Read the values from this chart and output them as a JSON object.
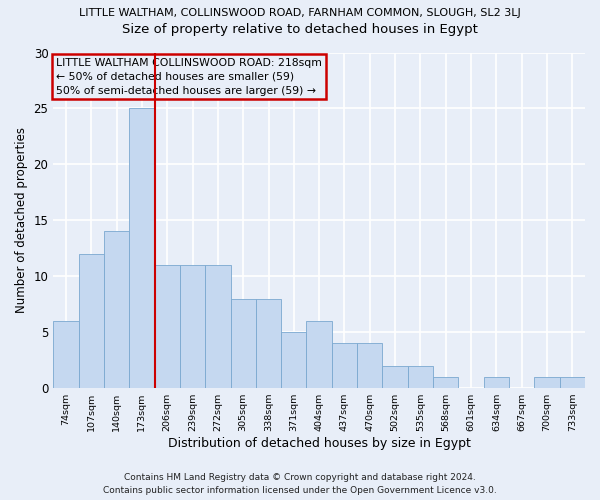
{
  "title1": "LITTLE WALTHAM, COLLINSWOOD ROAD, FARNHAM COMMON, SLOUGH, SL2 3LJ",
  "title2": "Size of property relative to detached houses in Egypt",
  "xlabel": "Distribution of detached houses by size in Egypt",
  "ylabel": "Number of detached properties",
  "bar_values": [
    6,
    12,
    14,
    25,
    11,
    11,
    11,
    8,
    8,
    5,
    6,
    4,
    4,
    2,
    2,
    1,
    0,
    1,
    0,
    1,
    1
  ],
  "bar_labels": [
    "74sqm",
    "107sqm",
    "140sqm",
    "173sqm",
    "206sqm",
    "239sqm",
    "272sqm",
    "305sqm",
    "338sqm",
    "371sqm",
    "404sqm",
    "437sqm",
    "470sqm",
    "502sqm",
    "535sqm",
    "568sqm",
    "601sqm",
    "634sqm",
    "667sqm",
    "700sqm",
    "733sqm"
  ],
  "bar_color": "#c5d8f0",
  "bar_edge_color": "#7aa8d0",
  "vline_x": 3.5,
  "vline_color": "#cc0000",
  "annotation_title": "LITTLE WALTHAM COLLINSWOOD ROAD: 218sqm",
  "annotation_line1": "← 50% of detached houses are smaller (59)",
  "annotation_line2": "50% of semi-detached houses are larger (59) →",
  "annotation_box_edgecolor": "#cc0000",
  "ylim": [
    0,
    30
  ],
  "yticks": [
    0,
    5,
    10,
    15,
    20,
    25,
    30
  ],
  "background_color": "#e8eef8",
  "plot_bg_color": "#e8eef8",
  "grid_color": "#ffffff",
  "footer1": "Contains HM Land Registry data © Crown copyright and database right 2024.",
  "footer2": "Contains public sector information licensed under the Open Government Licence v3.0.",
  "title1_fontsize": 8.0,
  "title2_fontsize": 9.5,
  "xlabel_fontsize": 9.0,
  "ylabel_fontsize": 8.5,
  "xtick_fontsize": 6.8,
  "ytick_fontsize": 8.5,
  "annotation_fontsize": 7.8,
  "footer_fontsize": 6.5
}
